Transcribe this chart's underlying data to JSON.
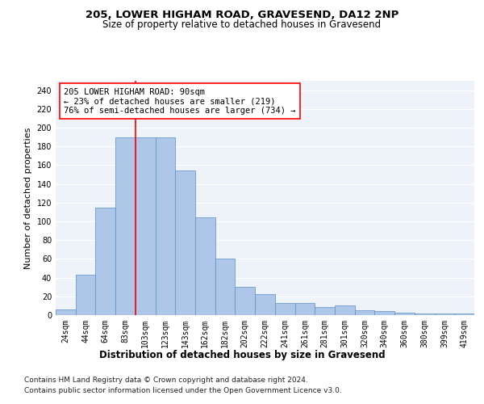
{
  "title": "205, LOWER HIGHAM ROAD, GRAVESEND, DA12 2NP",
  "subtitle": "Size of property relative to detached houses in Gravesend",
  "xlabel": "Distribution of detached houses by size in Gravesend",
  "ylabel": "Number of detached properties",
  "categories": [
    "24sqm",
    "44sqm",
    "64sqm",
    "83sqm",
    "103sqm",
    "123sqm",
    "143sqm",
    "162sqm",
    "182sqm",
    "202sqm",
    "222sqm",
    "241sqm",
    "261sqm",
    "281sqm",
    "301sqm",
    "320sqm",
    "340sqm",
    "360sqm",
    "380sqm",
    "399sqm",
    "419sqm"
  ],
  "values": [
    6,
    43,
    115,
    190,
    190,
    190,
    154,
    104,
    60,
    30,
    22,
    13,
    13,
    9,
    10,
    5,
    4,
    3,
    2,
    2,
    2
  ],
  "bar_color": "#aec6e8",
  "bar_edge_color": "#5a8fc4",
  "annotation_text": "205 LOWER HIGHAM ROAD: 90sqm\n← 23% of detached houses are smaller (219)\n76% of semi-detached houses are larger (734) →",
  "annotation_box_color": "white",
  "annotation_box_edge_color": "red",
  "ylim": [
    0,
    250
  ],
  "yticks": [
    0,
    20,
    40,
    60,
    80,
    100,
    120,
    140,
    160,
    180,
    200,
    220,
    240
  ],
  "bg_color": "#eef2f9",
  "footer_line1": "Contains HM Land Registry data © Crown copyright and database right 2024.",
  "footer_line2": "Contains public sector information licensed under the Open Government Licence v3.0.",
  "title_fontsize": 9.5,
  "subtitle_fontsize": 8.5,
  "xlabel_fontsize": 8.5,
  "ylabel_fontsize": 8,
  "tick_fontsize": 7,
  "annotation_fontsize": 7.5,
  "footer_fontsize": 6.5
}
